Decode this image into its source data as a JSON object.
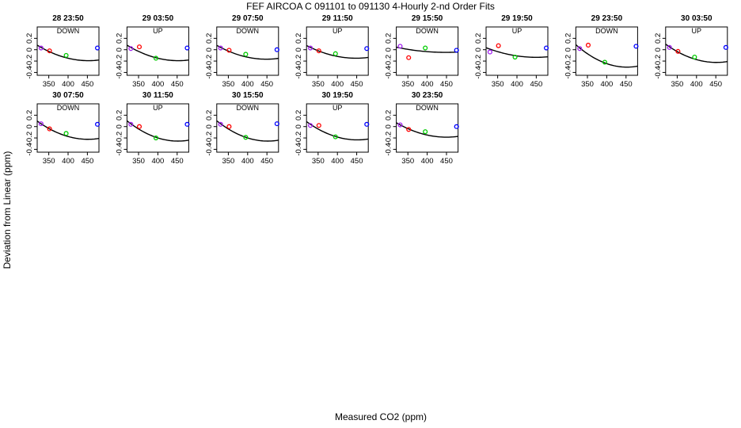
{
  "figure": {
    "title": "FEF   AIRCOA C   091101 to 091130   4-Hourly 2-nd Order Fits",
    "xlabel": "Measured CO2 (ppm)",
    "ylabel": "Deviation from Linear (ppm)"
  },
  "chart_data": {
    "type": "scatter",
    "title": "FEF   AIRCOA C   091101 to 091130   4-Hourly 2-nd Order Fits",
    "xlabel": "Measured CO2 (ppm)",
    "ylabel": "Deviation from Linear (ppm)",
    "xlim": [
      320,
      480
    ],
    "ylim": [
      -0.45,
      0.4
    ],
    "xticks": [
      350,
      400,
      450
    ],
    "yticks": [
      -0.4,
      -0.2,
      0,
      0.2
    ],
    "grid": false,
    "point_colors": [
      "#a020f0",
      "#ff0000",
      "#00cc00",
      "#0000ff"
    ],
    "curve_color": "#000000",
    "panels": [
      {
        "title": "28 23:50",
        "subtitle": "DOWN",
        "x": [
          330,
          352,
          395,
          476
        ],
        "y": [
          0.03,
          -0.02,
          -0.1,
          0.03
        ],
        "curve": [
          0.04,
          -0.0038,
          1.55e-05
        ]
      },
      {
        "title": "29 03:50",
        "subtitle": "UP",
        "x": [
          330,
          352,
          395,
          476
        ],
        "y": [
          0.02,
          0.05,
          -0.15,
          0.03
        ],
        "curve": [
          0.04,
          -0.0038,
          1.55e-05
        ]
      },
      {
        "title": "29 07:50",
        "subtitle": "DOWN",
        "x": [
          330,
          352,
          395,
          476
        ],
        "y": [
          0.03,
          -0.01,
          -0.08,
          0.0
        ],
        "curve": [
          0.04,
          -0.0035,
          1.48e-05
        ]
      },
      {
        "title": "29 11:50",
        "subtitle": "UP",
        "x": [
          330,
          352,
          395,
          476
        ],
        "y": [
          0.03,
          -0.02,
          -0.07,
          0.02
        ],
        "curve": [
          0.04,
          -0.0032,
          1.35e-05
        ]
      },
      {
        "title": "29 15:50",
        "subtitle": "DOWN",
        "x": [
          330,
          352,
          395,
          476
        ],
        "y": [
          0.06,
          -0.14,
          0.03,
          -0.01
        ],
        "curve": [
          0.03,
          -0.0013,
          5.5e-06
        ]
      },
      {
        "title": "29 19:50",
        "subtitle": "UP",
        "x": [
          330,
          352,
          395,
          476
        ],
        "y": [
          -0.04,
          0.07,
          -0.13,
          0.03
        ],
        "curve": [
          0.01,
          -0.0024,
          1e-05
        ]
      },
      {
        "title": "29 23:50",
        "subtitle": "DOWN",
        "x": [
          330,
          352,
          395,
          476
        ],
        "y": [
          0.02,
          0.08,
          -0.22,
          0.06
        ],
        "curve": [
          0.03,
          -0.0055,
          2.25e-05
        ]
      },
      {
        "title": "30 03:50",
        "subtitle": "UP",
        "x": [
          330,
          352,
          395,
          476
        ],
        "y": [
          0.04,
          -0.03,
          -0.13,
          0.04
        ],
        "curve": [
          0.05,
          -0.0045,
          1.85e-05
        ]
      },
      {
        "title": "30 07:50",
        "subtitle": "DOWN",
        "x": [
          330,
          352,
          395,
          476
        ],
        "y": [
          0.05,
          -0.04,
          -0.12,
          0.04
        ],
        "curve": [
          0.05,
          -0.0045,
          1.85e-05
        ]
      },
      {
        "title": "30 11:50",
        "subtitle": "UP",
        "x": [
          330,
          352,
          395,
          476
        ],
        "y": [
          0.04,
          0.0,
          -0.2,
          0.04
        ],
        "curve": [
          0.05,
          -0.005,
          2.05e-05
        ]
      },
      {
        "title": "30 15:50",
        "subtitle": "DOWN",
        "x": [
          330,
          352,
          395,
          476
        ],
        "y": [
          0.04,
          0.0,
          -0.19,
          0.05
        ],
        "curve": [
          0.05,
          -0.005,
          2.05e-05
        ]
      },
      {
        "title": "30 19:50",
        "subtitle": "UP",
        "x": [
          330,
          352,
          395,
          476
        ],
        "y": [
          0.02,
          0.02,
          -0.18,
          0.04
        ],
        "curve": [
          0.04,
          -0.0045,
          1.85e-05
        ]
      },
      {
        "title": "30 23:50",
        "subtitle": "DOWN",
        "x": [
          330,
          352,
          395,
          476
        ],
        "y": [
          0.03,
          -0.05,
          -0.09,
          0.0
        ],
        "curve": [
          0.03,
          -0.0036,
          1.5e-05
        ]
      }
    ]
  }
}
